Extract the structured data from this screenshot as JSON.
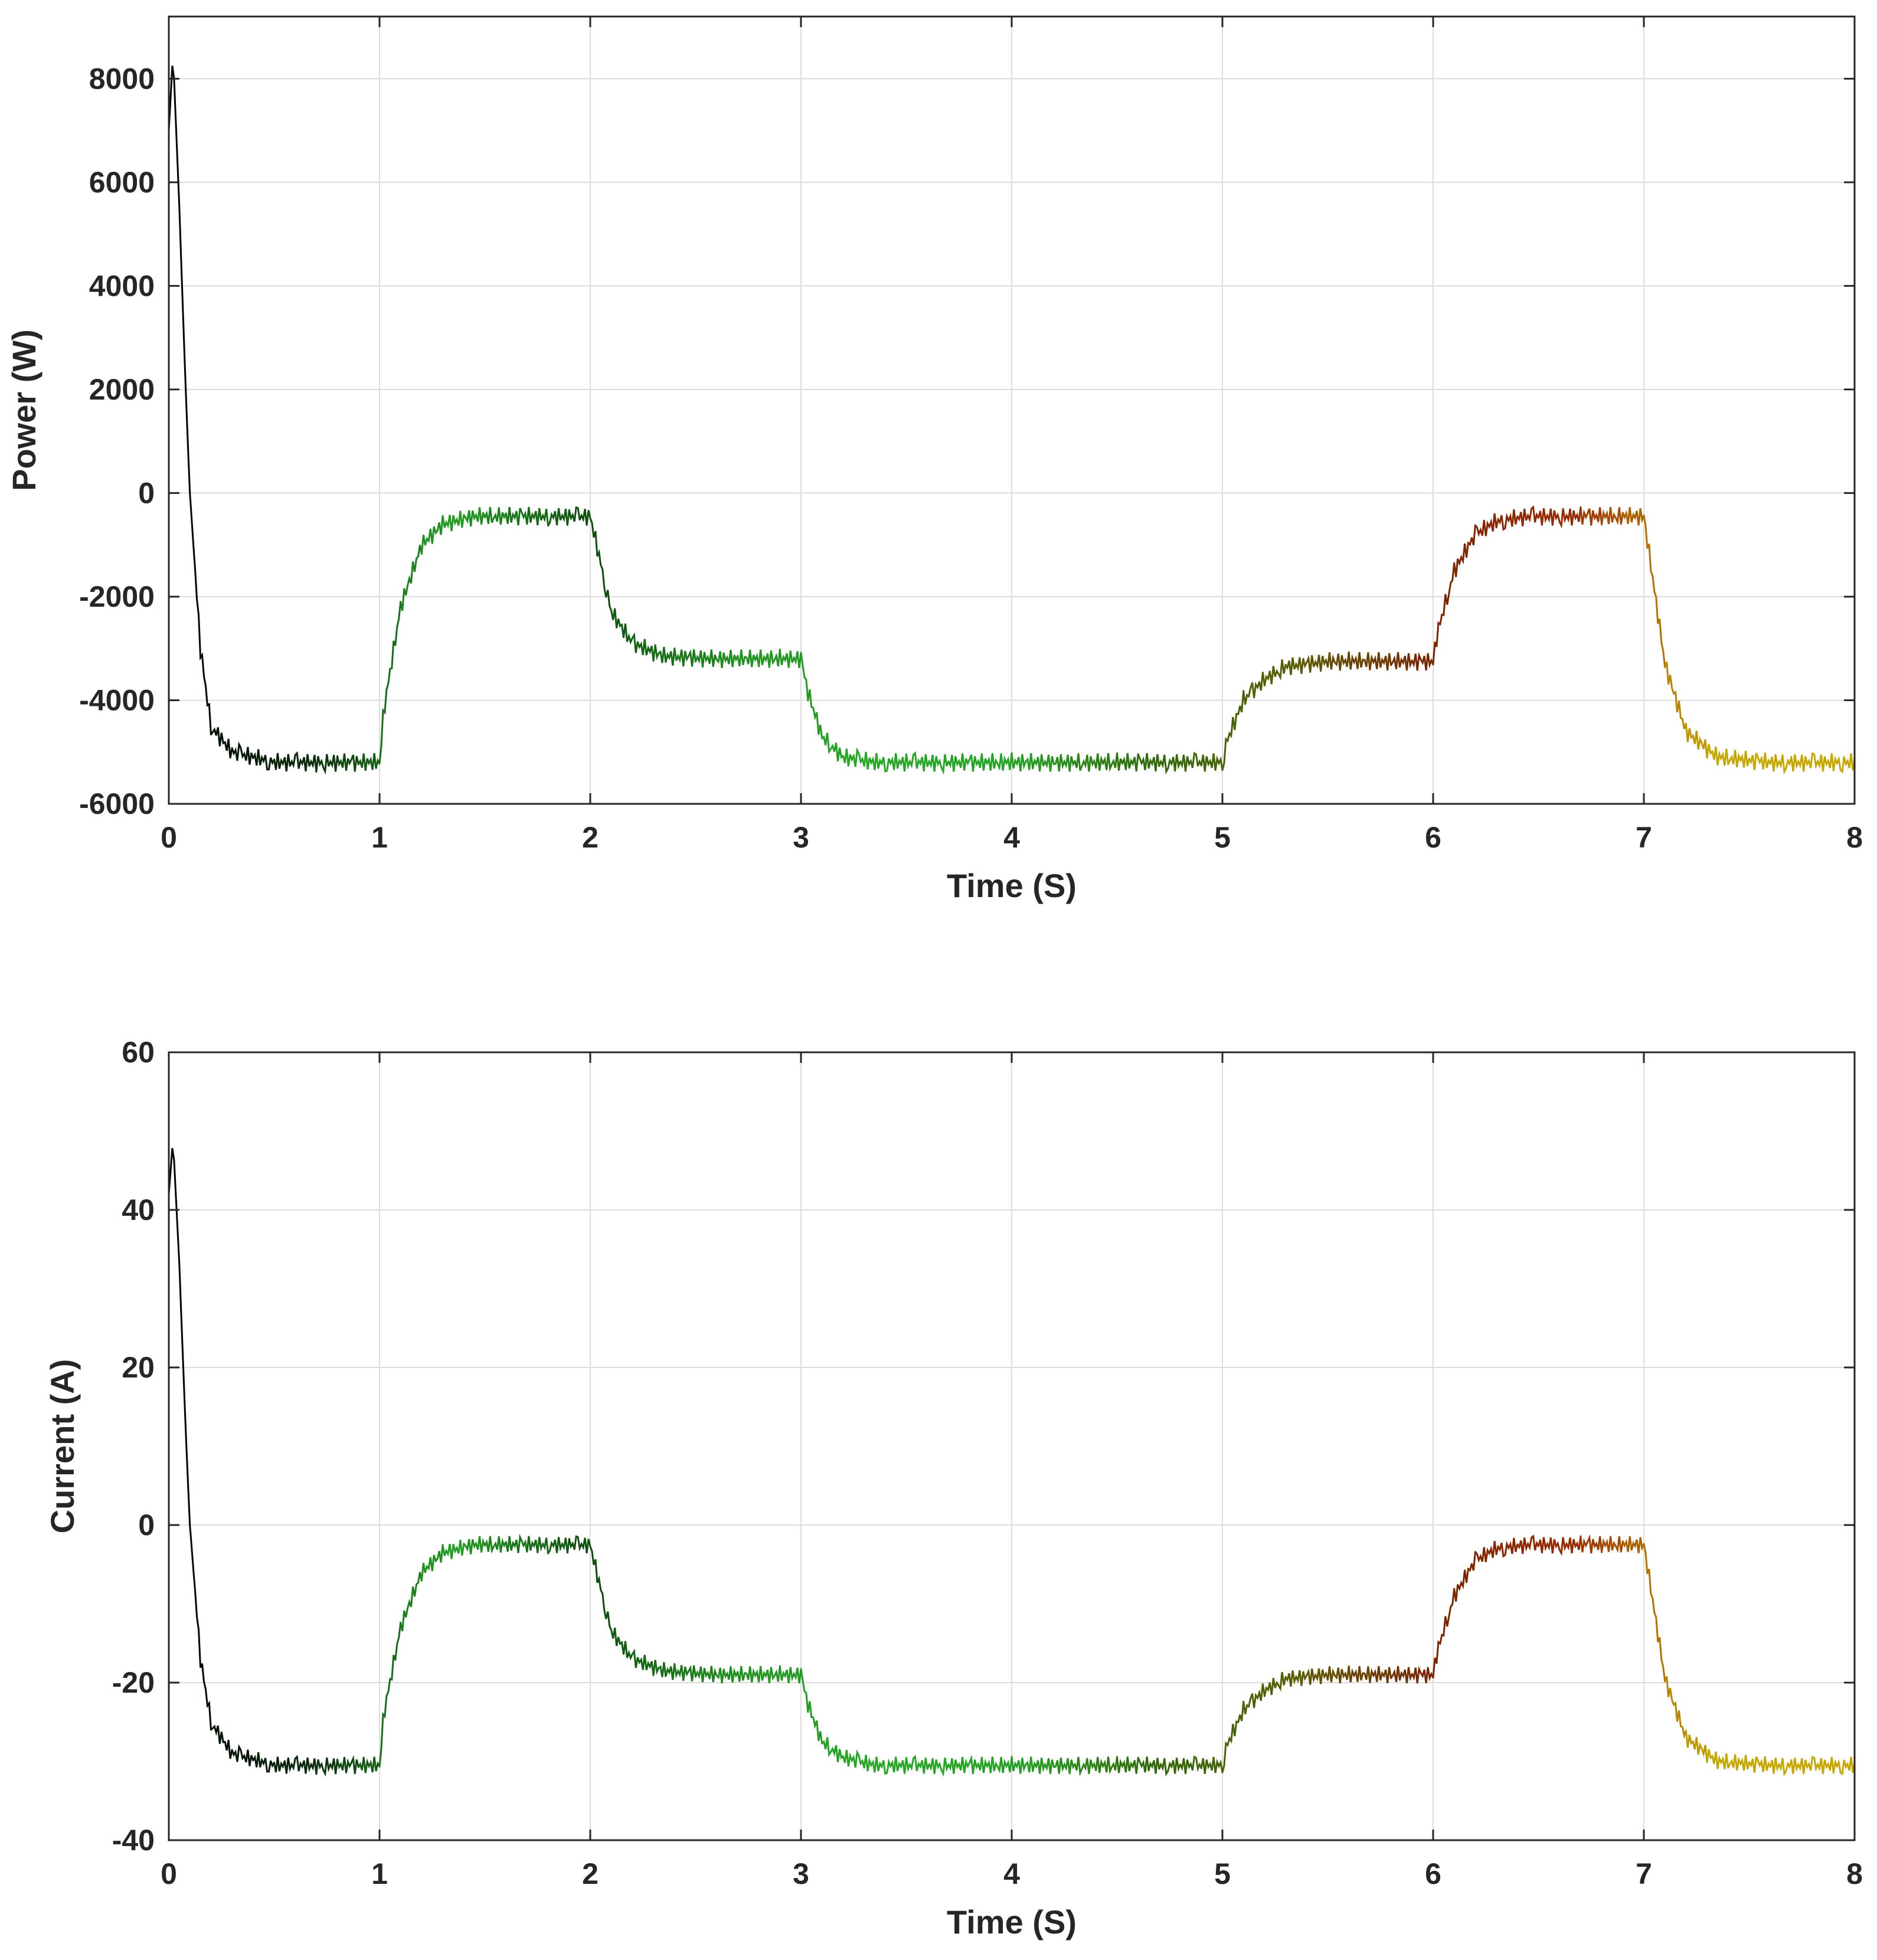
{
  "chart_data": [
    {
      "type": "line",
      "title": "",
      "xlabel": "Time (S)",
      "ylabel": "Power (W)",
      "xlim": [
        0,
        8
      ],
      "ylim": [
        -6000,
        9200
      ],
      "xticks": [
        0,
        1,
        2,
        3,
        4,
        5,
        6,
        7,
        8
      ],
      "yticks": [
        -6000,
        -4000,
        -2000,
        0,
        2000,
        4000,
        6000,
        8000
      ],
      "x_tick_labels": [
        "0",
        "1",
        "2",
        "3",
        "4",
        "5",
        "6",
        "7",
        "8"
      ],
      "y_tick_labels": [
        "-6000",
        "-4000",
        "-2000",
        "0",
        "2000",
        "4000",
        "6000",
        "8000"
      ],
      "grid": true,
      "series": [
        {
          "name": "Power",
          "x": [
            0,
            0.02,
            0.05,
            0.08,
            0.1,
            0.15,
            0.2,
            0.3,
            0.5,
            1.0,
            1.02,
            1.1,
            1.2,
            1.3,
            1.45,
            2.0,
            2.03,
            2.1,
            2.2,
            2.35,
            2.6,
            3.0,
            3.03,
            3.1,
            3.2,
            3.35,
            3.6,
            5.0,
            5.02,
            5.1,
            5.2,
            5.3,
            5.5,
            6.0,
            6.02,
            6.1,
            6.2,
            6.3,
            6.45,
            7.0,
            7.03,
            7.1,
            7.2,
            7.35,
            7.6,
            8.0
          ],
          "y": [
            7000,
            8500,
            5500,
            2000,
            0,
            -3000,
            -4500,
            -5000,
            -5200,
            -5200,
            -4200,
            -2200,
            -1000,
            -600,
            -450,
            -450,
            -1000,
            -2300,
            -2900,
            -3150,
            -3200,
            -3200,
            -3800,
            -4700,
            -5100,
            -5200,
            -5200,
            -5200,
            -4800,
            -4000,
            -3600,
            -3350,
            -3250,
            -3250,
            -2700,
            -1500,
            -800,
            -550,
            -450,
            -450,
            -1300,
            -3300,
            -4600,
            -5100,
            -5200,
            -5200
          ],
          "ripple": 180,
          "colors": [
            "#000000",
            "#0b2a0b",
            "#22a022",
            "#0d4a0d",
            "#1f8f1f",
            "#25a825",
            "#24a324",
            "#2f6a08",
            "#5a5d03",
            "#7a2200",
            "#9a2a00",
            "#c4a800",
            "#c9a500"
          ]
        }
      ]
    },
    {
      "type": "line",
      "title": "",
      "xlabel": "Time (S)",
      "ylabel": "Current (A)",
      "xlim": [
        0,
        8
      ],
      "ylim": [
        -40,
        60
      ],
      "xticks": [
        0,
        1,
        2,
        3,
        4,
        5,
        6,
        7,
        8
      ],
      "yticks": [
        -40,
        -20,
        0,
        20,
        40,
        60
      ],
      "x_tick_labels": [
        "0",
        "1",
        "2",
        "3",
        "4",
        "5",
        "6",
        "7",
        "8"
      ],
      "y_tick_labels": [
        "-40",
        "-20",
        "0",
        "20",
        "40",
        "60"
      ],
      "grid": true,
      "series": [
        {
          "name": "Current",
          "x": [
            0,
            0.02,
            0.05,
            0.08,
            0.1,
            0.15,
            0.2,
            0.3,
            0.5,
            1.0,
            1.02,
            1.1,
            1.2,
            1.3,
            1.45,
            2.0,
            2.03,
            2.1,
            2.2,
            2.35,
            2.6,
            3.0,
            3.03,
            3.1,
            3.2,
            3.35,
            3.6,
            5.0,
            5.02,
            5.1,
            5.2,
            5.3,
            5.5,
            6.0,
            6.02,
            6.1,
            6.2,
            6.3,
            6.45,
            7.0,
            7.03,
            7.1,
            7.2,
            7.35,
            7.6,
            8.0
          ],
          "y": [
            42,
            49,
            33,
            12,
            0,
            -17,
            -25,
            -29,
            -30.5,
            -30.5,
            -24,
            -13,
            -6,
            -3.5,
            -2.5,
            -2.5,
            -6,
            -13.5,
            -17,
            -18.5,
            -19,
            -19,
            -22.5,
            -27.5,
            -29.5,
            -30.5,
            -30.5,
            -30.5,
            -28,
            -23.5,
            -21,
            -19.5,
            -19,
            -19,
            -16,
            -9,
            -4.5,
            -3,
            -2.5,
            -2.5,
            -7.5,
            -19.5,
            -27,
            -30,
            -30.5,
            -30.5
          ],
          "ripple": 1.1,
          "colors": [
            "#000000",
            "#0b2a0b",
            "#22a022",
            "#0d4a0d",
            "#1f8f1f",
            "#25a825",
            "#24a324",
            "#2f6a08",
            "#5a5d03",
            "#7a2200",
            "#9a2a00",
            "#c4a800",
            "#c9a500"
          ]
        }
      ]
    }
  ]
}
